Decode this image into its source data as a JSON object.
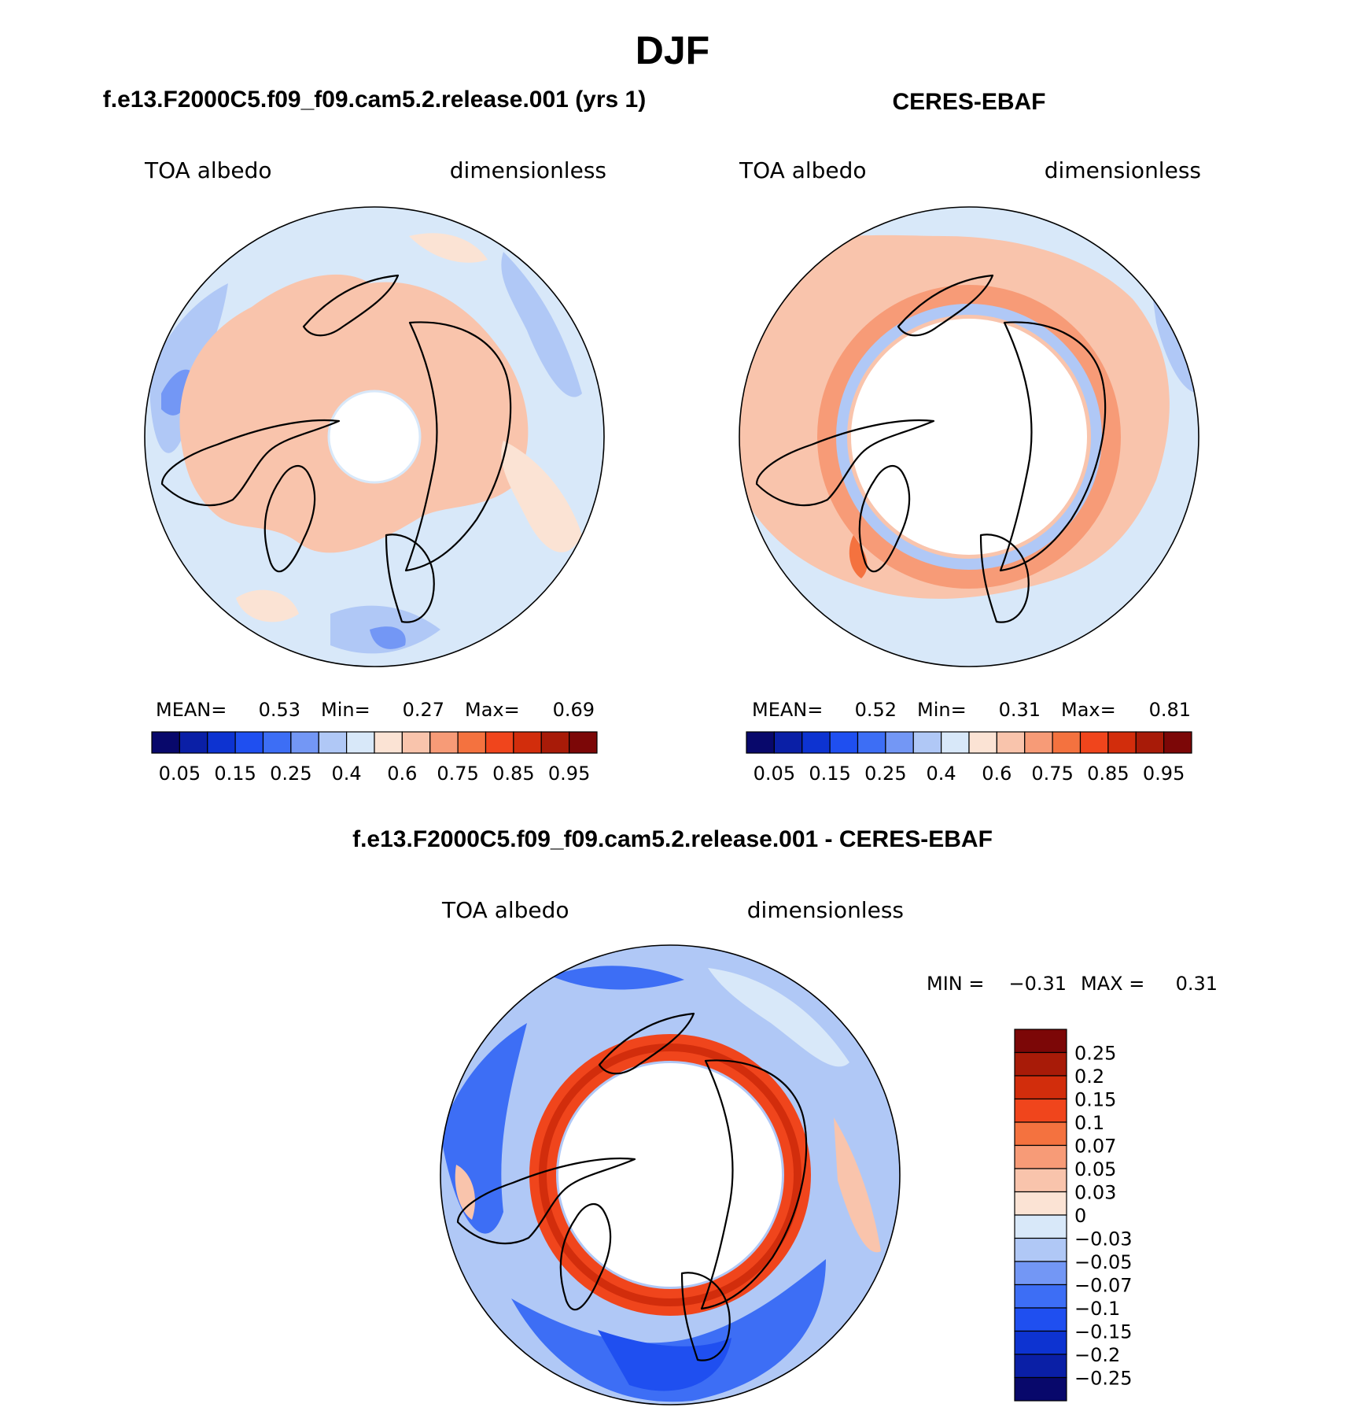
{
  "figure": {
    "title": "DJF",
    "model_title": "f.e13.F2000C5.f09_f09.cam5.2.release.001 (yrs 1)",
    "obs_title": "CERES-EBAF",
    "diff_title": "f.e13.F2000C5.f09_f09.cam5.2.release.001 - CERES-EBAF"
  },
  "panels": [
    {
      "id": "model",
      "variable": "TOA albedo",
      "units": "dimensionless",
      "stats": {
        "mean_label": "MEAN=",
        "mean": "0.53",
        "min_label": "Min=",
        "min": "0.27",
        "max_label": "Max=",
        "max": "0.69"
      }
    },
    {
      "id": "obs",
      "variable": "TOA albedo",
      "units": "dimensionless",
      "stats": {
        "mean_label": "MEAN=",
        "mean": "0.52",
        "min_label": "Min=",
        "min": "0.31",
        "max_label": "Max=",
        "max": "0.81"
      }
    },
    {
      "id": "diff",
      "variable": "TOA albedo",
      "units": "dimensionless",
      "stats": {
        "min_label": "MIN =",
        "min": "−0.31",
        "max_label": "MAX =",
        "max": "0.31"
      }
    }
  ],
  "colorbar_abs": {
    "colors": [
      "#08086b",
      "#0a1fa6",
      "#0d33d1",
      "#1f4ff0",
      "#3d6ef5",
      "#7397f5",
      "#b0c8f6",
      "#d8e8f9",
      "#fbe3d4",
      "#f9c4ac",
      "#f79b77",
      "#f4723f",
      "#f0451c",
      "#d22d0c",
      "#a81b08",
      "#7c0707"
    ],
    "labels": [
      "0.05",
      "0.15",
      "0.25",
      "0.4",
      "0.6",
      "0.75",
      "0.85",
      "0.95"
    ]
  },
  "colorbar_diff": {
    "colors": [
      "#7c0707",
      "#a81b08",
      "#d22d0c",
      "#f0451c",
      "#f4723f",
      "#f79b77",
      "#f9c4ac",
      "#fbe3d4",
      "#d8e8f9",
      "#b0c8f6",
      "#7397f5",
      "#3d6ef5",
      "#1f4ff0",
      "#0d33d1",
      "#0a1fa6",
      "#08086b"
    ],
    "labels": [
      "0.25",
      "0.2",
      "0.15",
      "0.1",
      "0.07",
      "0.05",
      "0.03",
      "0",
      "−0.03",
      "−0.05",
      "−0.07",
      "−0.1",
      "−0.15",
      "−0.2",
      "−0.25"
    ]
  },
  "colors": {
    "land_peach": "#f9c4ac",
    "ocean_light": "#d8e8f9",
    "ocean_mid": "#b0c8f6",
    "ring_red": "#f0451c",
    "deep_blue": "#1f4ff0"
  }
}
